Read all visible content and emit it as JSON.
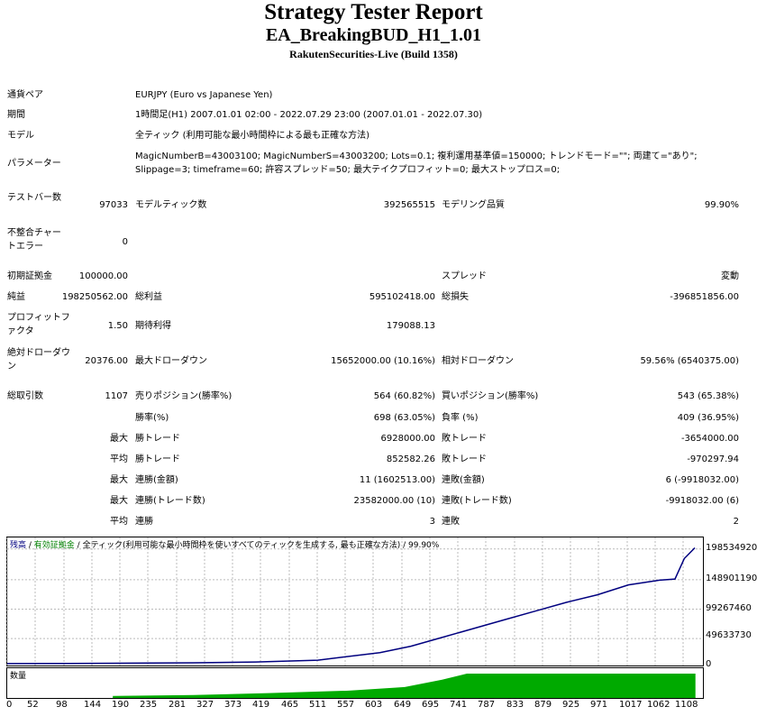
{
  "header": {
    "title": "Strategy Tester Report",
    "ea_name": "EA_BreakingBUD_H1_1.01",
    "server": "RakutenSecurities-Live (Build 1358)"
  },
  "settings": [
    {
      "label": "通貨ペア",
      "value": "EURJPY (Euro vs Japanese Yen)"
    },
    {
      "label": "期間",
      "value": "1時間足(H1) 2007.01.01 02:00 - 2022.07.29 23:00 (2007.01.01 - 2022.07.30)"
    },
    {
      "label": "モデル",
      "value": "全ティック (利用可能な最小時間枠による最も正確な方法)"
    },
    {
      "label": "パラメーター",
      "value": "MagicNumberB=43003100; MagicNumberS=43003200; Lots=0.1; 複利運用基準値=150000; トレンドモード=\"\"; 両建て=\"あり\"; Slippage=3; timeframe=60; 許容スプレッド=50; 最大テイクプロフィット=0; 最大ストップロス=0;"
    }
  ],
  "stats": {
    "bars_label": "テストバー数",
    "bars": "97033",
    "ticks_label": "モデルティック数",
    "ticks": "392565515",
    "quality_label": "モデリング品質",
    "quality": "99.90%",
    "mismatch_label": "不整合チャートエラー",
    "mismatch": "0",
    "deposit_label": "初期証拠金",
    "deposit": "100000.00",
    "spread_label": "スプレッド",
    "spread": "変動",
    "net_label": "純益",
    "net": "198250562.00",
    "gross_profit_label": "総利益",
    "gross_profit": "595102418.00",
    "gross_loss_label": "総損失",
    "gross_loss": "-396851856.00",
    "pf_label": "プロフィットファクタ",
    "pf": "1.50",
    "payoff_label": "期待利得",
    "payoff": "179088.13",
    "abs_dd_label": "絶対ドローダウン",
    "abs_dd": "20376.00",
    "max_dd_label": "最大ドローダウン",
    "max_dd": "15652000.00 (10.16%)",
    "rel_dd_label": "相対ドローダウン",
    "rel_dd": "59.56% (6540375.00)",
    "trades_label": "総取引数",
    "trades": "1107",
    "short_label": "売りポジション(勝率%)",
    "short": "564 (60.82%)",
    "long_label": "買いポジション(勝率%)",
    "long": "543 (65.38%)",
    "win_label": "勝率(%)",
    "win": "698 (63.05%)",
    "loss_label": "負率 (%)",
    "loss": "409 (36.95%)",
    "max1": "最大",
    "largest_win_label": "勝トレード",
    "largest_win": "6928000.00",
    "largest_loss_label": "敗トレード",
    "largest_loss": "-3654000.00",
    "avg1": "平均",
    "avg_win_label": "勝トレード",
    "avg_win": "852582.26",
    "avg_loss_label": "敗トレード",
    "avg_loss": "-970297.94",
    "max2": "最大",
    "cons_wins_money_label": "連勝(金額)",
    "cons_wins_money": "11 (1602513.00)",
    "cons_loss_money_label": "連敗(金額)",
    "cons_loss_money": "6 (-9918032.00)",
    "max3": "最大",
    "cons_profit_label": "連勝(トレード数)",
    "cons_profit": "23582000.00 (10)",
    "cons_loss_label": "連敗(トレード数)",
    "cons_loss": "-9918032.00 (6)",
    "avg2": "平均",
    "avg_cons_win_label": "連勝",
    "avg_cons_win": "3",
    "avg_cons_loss_label": "連敗",
    "avg_cons_loss": "2"
  },
  "chart_caption": {
    "balance": "残高",
    "sep1": " / ",
    "margin": "有効証拠金",
    "sep2": " / ",
    "model": "全ティック(利用可能な最小時間枠を使いすべてのティックを生成する, 最も正確な方法)",
    "sep3": " / ",
    "quality": "99.90%"
  },
  "volume_caption": "数量",
  "colors": {
    "balance": "#00007f",
    "volume": "#00aa00",
    "margin_text": "#008000"
  },
  "chart_data": {
    "type": "line",
    "series": [
      {
        "name": "残高",
        "x": [
          0,
          100,
          200,
          300,
          400,
          500,
          600,
          650,
          700,
          750,
          800,
          850,
          900,
          950,
          1000,
          1050,
          1075,
          1090,
          1107
        ],
        "y": [
          100000,
          300000,
          900000,
          1500000,
          3000000,
          6000000,
          19000000,
          30000000,
          45000000,
          60000000,
          75000000,
          90000000,
          105000000,
          118000000,
          135000000,
          143000000,
          145000000,
          180000000,
          198350562
        ]
      }
    ],
    "xticks": [
      "0",
      "52",
      "98",
      "144",
      "190",
      "235",
      "281",
      "327",
      "373",
      "419",
      "465",
      "511",
      "557",
      "603",
      "649",
      "695",
      "741",
      "787",
      "833",
      "879",
      "925",
      "971",
      "1017",
      "1062",
      "1108"
    ],
    "yticks": [
      "198534920",
      "148901190",
      "99267460",
      "49633730",
      "0"
    ],
    "volume_levels": [
      {
        "x": 170,
        "v": 0.08
      },
      {
        "x": 300,
        "v": 0.12
      },
      {
        "x": 420,
        "v": 0.2
      },
      {
        "x": 550,
        "v": 0.3
      },
      {
        "x": 640,
        "v": 0.45
      },
      {
        "x": 700,
        "v": 0.75
      },
      {
        "x": 740,
        "v": 1.0
      },
      {
        "x": 1108,
        "v": 1.0
      }
    ]
  }
}
